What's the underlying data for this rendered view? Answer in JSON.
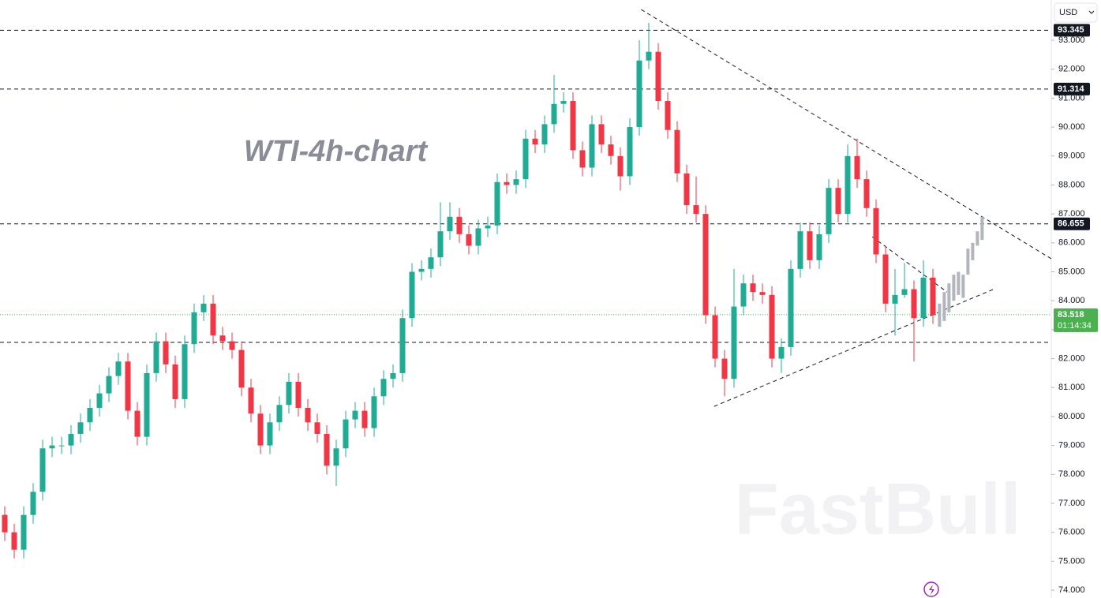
{
  "chart_data": {
    "type": "candlestick",
    "title": "WTI-4h-chart",
    "watermark": "FastBull",
    "currency": "USD",
    "up_color": "#22ab94",
    "down_color": "#f23645",
    "ylim": [
      73.73,
      94.39
    ],
    "yticks": [
      {
        "value": 74,
        "label": "74.000"
      },
      {
        "value": 75,
        "label": "75.000"
      },
      {
        "value": 76,
        "label": "76.000"
      },
      {
        "value": 77,
        "label": "77.000"
      },
      {
        "value": 78,
        "label": "78.000"
      },
      {
        "value": 79,
        "label": "79.000"
      },
      {
        "value": 80,
        "label": "80.000"
      },
      {
        "value": 81,
        "label": "81.000"
      },
      {
        "value": 82,
        "label": "82.000"
      },
      {
        "value": 83,
        "label": "83.000"
      },
      {
        "value": 84,
        "label": "84.000"
      },
      {
        "value": 85,
        "label": "85.000"
      },
      {
        "value": 86,
        "label": "86.000"
      },
      {
        "value": 87,
        "label": "87.000"
      },
      {
        "value": 88,
        "label": "88.000"
      },
      {
        "value": 89,
        "label": "89.000"
      },
      {
        "value": 90,
        "label": "90.000"
      },
      {
        "value": 91,
        "label": "91.000"
      },
      {
        "value": 92,
        "label": "92.000"
      },
      {
        "value": 93,
        "label": "93.000"
      }
    ],
    "levels": [
      93.345,
      91.314,
      86.655,
      82.56
    ],
    "level_labels": [
      "93.345",
      "91.314",
      "86.655",
      null
    ],
    "last_price": 83.518,
    "countdown": "01:14:34",
    "last_color": "#4caf50",
    "open": [
      76.6,
      76.0,
      75.4,
      76.6,
      77.4,
      78.9,
      79.0,
      79.0,
      79.4,
      79.8,
      80.3,
      80.8,
      81.4,
      81.9,
      80.2,
      79.3,
      81.5,
      82.6,
      81.8,
      80.6,
      82.5,
      83.6,
      83.9,
      82.8,
      82.6,
      82.3,
      81.0,
      80.1,
      79.0,
      79.8,
      80.4,
      81.2,
      80.3,
      79.8,
      79.4,
      78.3,
      78.9,
      79.9,
      80.2,
      79.6,
      80.7,
      81.3,
      81.5,
      83.4,
      85.0,
      85.1,
      85.5,
      86.4,
      86.9,
      86.3,
      85.9,
      86.5,
      86.6,
      88.1,
      88.0,
      88.2,
      89.6,
      89.4,
      90.1,
      90.8,
      90.9,
      89.2,
      88.6,
      90.1,
      89.4,
      89.0,
      88.3,
      90.0,
      92.3,
      92.6,
      90.9,
      89.9,
      88.4,
      87.3,
      87.0,
      83.5,
      82.0,
      81.3,
      83.8,
      84.6,
      84.3,
      84.2,
      82.0,
      82.4,
      85.1,
      86.4,
      85.4,
      86.3,
      87.9,
      87.0,
      89.0,
      88.2,
      87.2,
      85.6,
      83.9,
      84.2,
      84.4,
      83.4,
      84.8
    ],
    "high": [
      76.9,
      76.3,
      76.9,
      77.7,
      79.2,
      79.3,
      79.3,
      79.7,
      80.1,
      80.6,
      81.1,
      81.7,
      82.2,
      82.2,
      80.5,
      81.8,
      82.9,
      82.9,
      82.1,
      82.8,
      83.9,
      84.2,
      84.2,
      83.1,
      82.9,
      82.6,
      81.3,
      80.4,
      80.1,
      80.7,
      81.5,
      81.5,
      80.6,
      80.1,
      79.7,
      79.2,
      80.2,
      80.5,
      80.5,
      81.0,
      81.6,
      81.8,
      83.7,
      85.3,
      85.4,
      85.8,
      87.4,
      87.4,
      87.2,
      86.6,
      86.8,
      86.9,
      88.4,
      88.4,
      88.5,
      89.9,
      89.9,
      90.4,
      91.8,
      91.2,
      91.2,
      89.5,
      90.4,
      90.4,
      89.7,
      89.3,
      90.3,
      93.0,
      93.6,
      92.9,
      91.2,
      90.2,
      88.7,
      88.3,
      87.3,
      83.8,
      82.3,
      85.1,
      84.9,
      84.9,
      84.6,
      84.5,
      82.7,
      85.4,
      86.7,
      86.7,
      86.6,
      88.2,
      88.2,
      89.4,
      89.6,
      88.5,
      87.5,
      85.9,
      85.1,
      85.3,
      84.7,
      85.4,
      85.1
    ],
    "low": [
      75.7,
      75.1,
      75.1,
      76.3,
      77.1,
      78.6,
      78.7,
      78.7,
      79.1,
      79.5,
      80.0,
      80.5,
      81.1,
      79.9,
      79.0,
      79.0,
      81.2,
      81.5,
      80.3,
      80.3,
      82.2,
      83.3,
      82.5,
      82.3,
      82.0,
      80.7,
      79.8,
      78.7,
      78.7,
      79.5,
      80.1,
      80.0,
      79.5,
      79.1,
      78.0,
      77.6,
      78.6,
      79.6,
      79.3,
      79.3,
      80.4,
      81.0,
      81.2,
      83.1,
      84.7,
      84.8,
      85.2,
      86.1,
      86.0,
      85.6,
      85.6,
      86.2,
      86.3,
      87.7,
      87.7,
      87.9,
      89.1,
      89.1,
      89.8,
      90.5,
      88.9,
      88.3,
      88.3,
      89.1,
      88.7,
      87.8,
      88.0,
      89.7,
      92.0,
      90.6,
      89.6,
      88.1,
      87.0,
      86.7,
      83.2,
      81.7,
      80.7,
      81.0,
      83.5,
      84.0,
      83.9,
      81.7,
      81.5,
      82.1,
      84.8,
      85.1,
      85.1,
      86.0,
      86.7,
      86.7,
      87.9,
      86.9,
      85.3,
      83.6,
      82.8,
      84.1,
      81.9,
      83.1,
      83.2
    ],
    "close": [
      76.0,
      75.4,
      76.6,
      77.4,
      78.9,
      79.0,
      79.0,
      79.4,
      79.8,
      80.3,
      80.8,
      81.4,
      81.9,
      80.2,
      79.3,
      81.5,
      82.6,
      81.8,
      80.6,
      82.5,
      83.6,
      83.9,
      82.8,
      82.6,
      82.3,
      81.0,
      80.1,
      79.0,
      79.8,
      80.4,
      81.2,
      80.3,
      79.8,
      79.4,
      78.3,
      78.9,
      79.9,
      80.2,
      79.6,
      80.7,
      81.3,
      81.5,
      83.4,
      85.0,
      85.1,
      85.5,
      86.4,
      86.9,
      86.3,
      85.9,
      86.5,
      86.6,
      88.1,
      88.0,
      88.2,
      89.6,
      89.4,
      90.1,
      90.8,
      90.9,
      89.2,
      88.6,
      90.1,
      89.4,
      89.0,
      88.3,
      90.0,
      92.3,
      92.6,
      90.9,
      89.9,
      88.4,
      87.3,
      87.0,
      83.5,
      82.0,
      81.3,
      83.8,
      84.6,
      84.3,
      84.2,
      82.0,
      82.4,
      85.1,
      86.4,
      85.4,
      86.3,
      87.9,
      87.0,
      89.0,
      88.2,
      87.2,
      85.6,
      83.9,
      84.2,
      84.4,
      83.4,
      84.8,
      83.5
    ],
    "projection": {
      "color": "#b2b5be",
      "x": [
        98.7,
        99.2,
        99.7,
        100.2,
        100.7,
        101.2,
        101.7,
        102.2,
        102.7,
        103.2
      ],
      "high": [
        83.9,
        84.3,
        84.6,
        84.9,
        85.0,
        84.9,
        85.8,
        86.0,
        86.4,
        86.9
      ],
      "low": [
        83.1,
        83.3,
        83.6,
        84.0,
        84.2,
        84.1,
        84.9,
        85.4,
        85.9,
        86.1
      ]
    },
    "trendlines": [
      {
        "x": [
          67.2,
          110.5
        ],
        "y": [
          94.06,
          85.45
        ]
      },
      {
        "x": [
          74.9,
          104.5
        ],
        "y": [
          80.35,
          84.41
        ]
      },
      {
        "x": [
          91.6,
          99.5
        ],
        "y": [
          86.21,
          84.3
        ]
      }
    ]
  }
}
